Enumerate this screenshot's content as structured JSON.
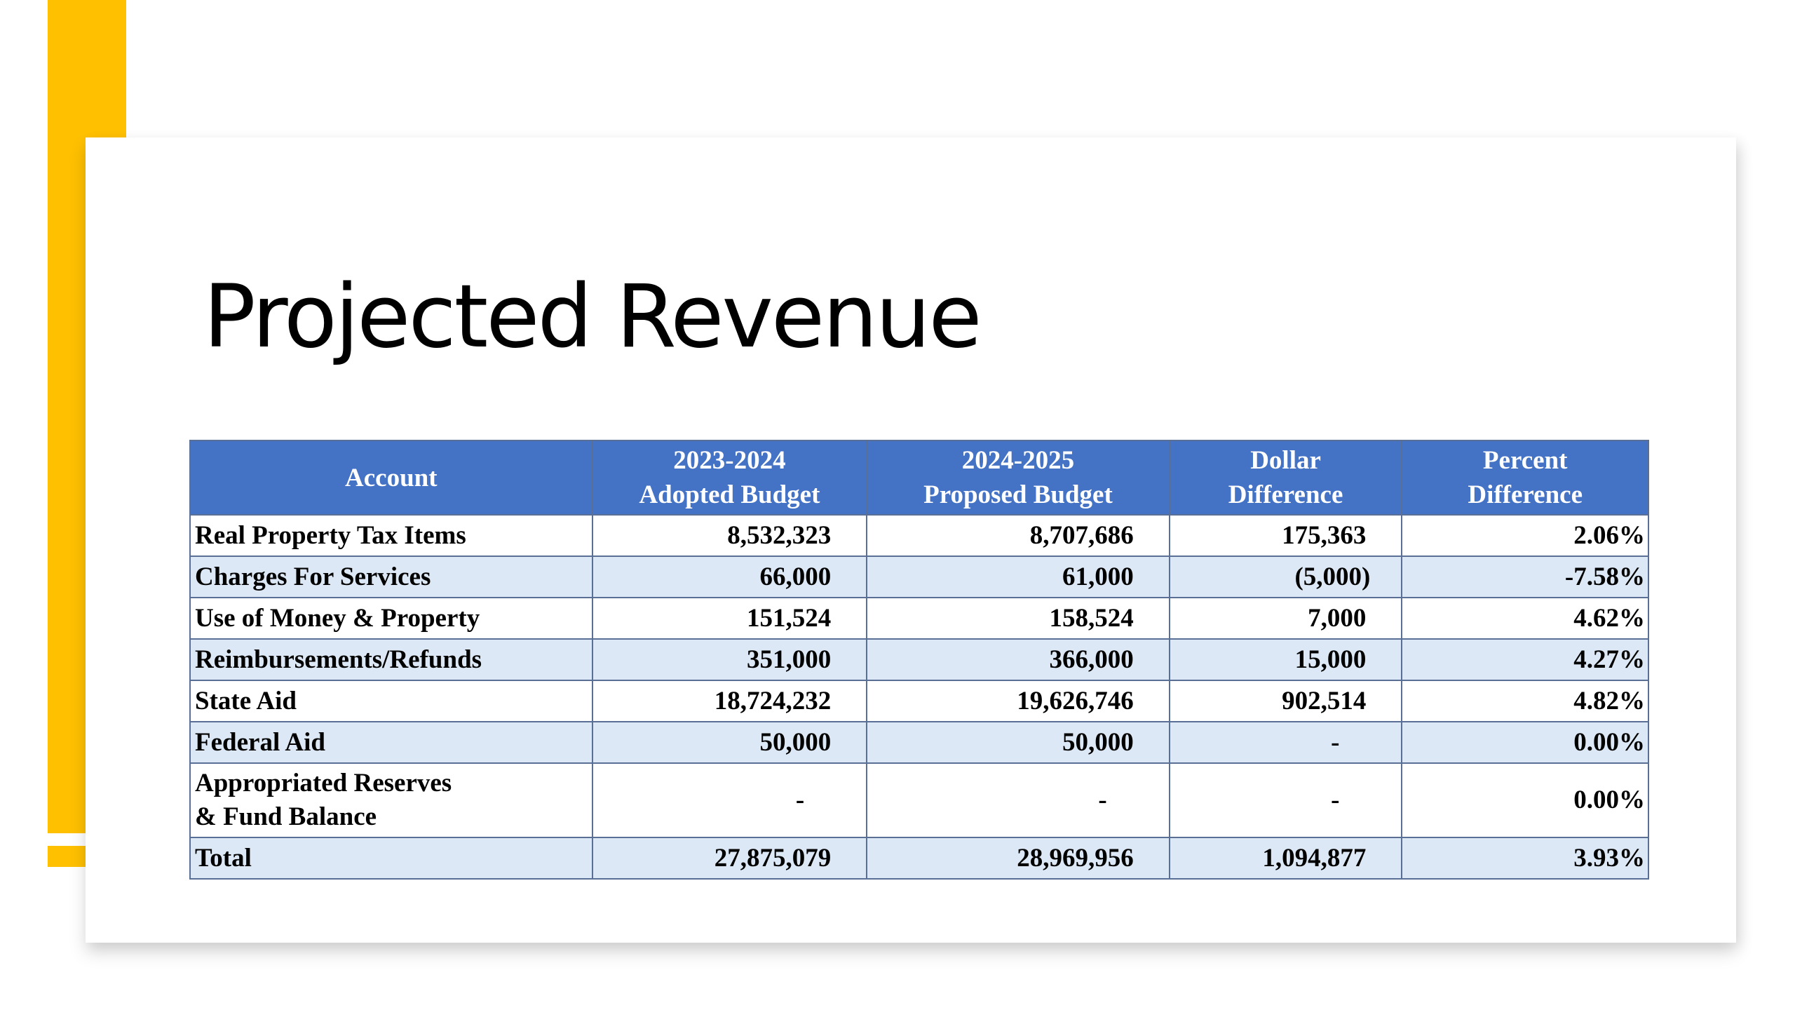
{
  "slide": {
    "title": "Projected Revenue",
    "accent_color": "#FFC000",
    "header_color": "#4472C4",
    "band_color": "#DCE8F5"
  },
  "table": {
    "headers": [
      {
        "line1": "Account",
        "line2": ""
      },
      {
        "line1": "2023-2024",
        "line2": "Adopted Budget"
      },
      {
        "line1": "2024-2025",
        "line2": "Proposed Budget"
      },
      {
        "line1": "Dollar",
        "line2": "Difference"
      },
      {
        "line1": "Percent",
        "line2": "Difference"
      }
    ],
    "rows": [
      {
        "account": "Real Property Tax Items",
        "account_line2": "",
        "adopted": "8,532,323",
        "proposed": "8,707,686",
        "dollar_diff": "175,363",
        "percent_diff": "2.06%"
      },
      {
        "account": "Charges For Services",
        "account_line2": "",
        "adopted": "66,000",
        "proposed": "61,000",
        "dollar_diff": "(5,000)",
        "percent_diff": "-7.58%"
      },
      {
        "account": "Use of Money & Property",
        "account_line2": "",
        "adopted": "151,524",
        "proposed": "158,524",
        "dollar_diff": "7,000",
        "percent_diff": "4.62%"
      },
      {
        "account": "Reimbursements/Refunds",
        "account_line2": "",
        "adopted": "351,000",
        "proposed": "366,000",
        "dollar_diff": "15,000",
        "percent_diff": "4.27%"
      },
      {
        "account": "State Aid",
        "account_line2": "",
        "adopted": "18,724,232",
        "proposed": "19,626,746",
        "dollar_diff": "902,514",
        "percent_diff": "4.82%"
      },
      {
        "account": "Federal Aid",
        "account_line2": "",
        "adopted": "50,000",
        "proposed": "50,000",
        "dollar_diff": "-",
        "percent_diff": "0.00%"
      },
      {
        "account": "Appropriated Reserves",
        "account_line2": "& Fund Balance",
        "adopted": "-",
        "proposed": "-",
        "dollar_diff": "-",
        "percent_diff": "0.00%"
      },
      {
        "account": "Total",
        "account_line2": "",
        "adopted": "27,875,079",
        "proposed": "28,969,956",
        "dollar_diff": "1,094,877",
        "percent_diff": "3.93%"
      }
    ]
  }
}
